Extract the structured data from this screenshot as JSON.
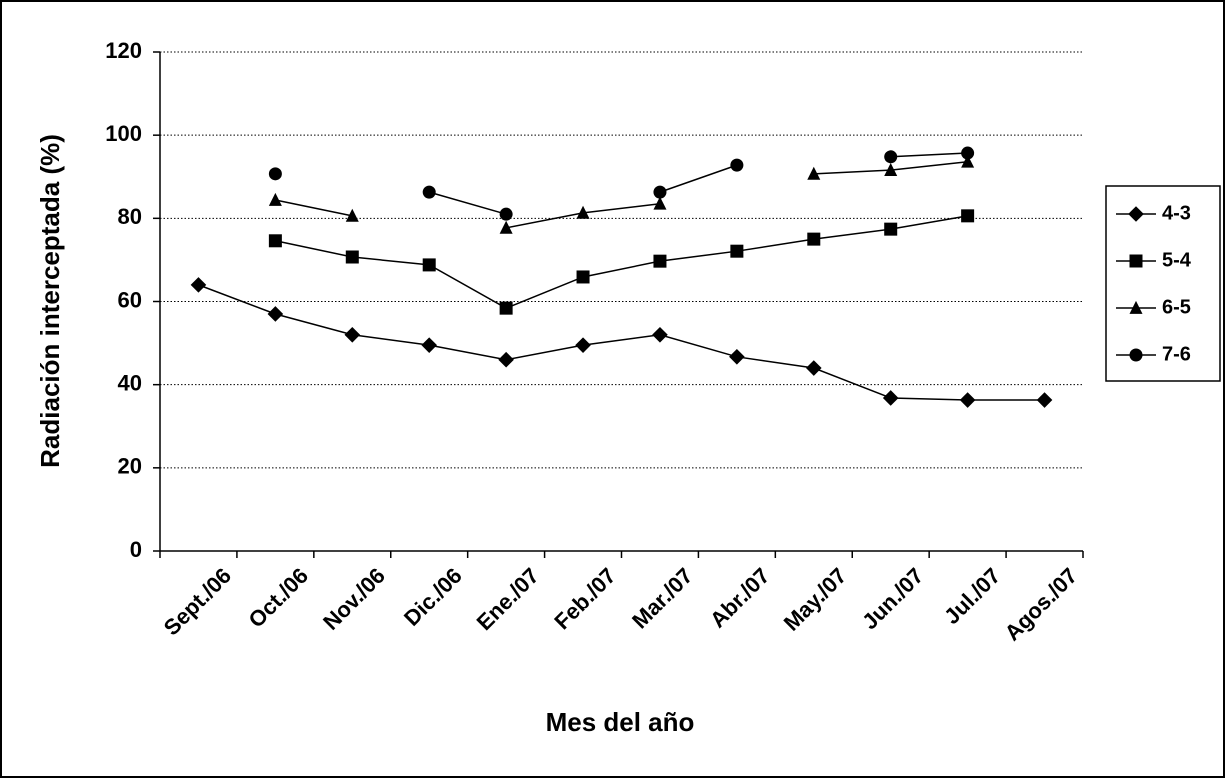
{
  "chart_data": {
    "type": "line",
    "x_label": "Mes del año",
    "y_label": "Radiación interceptada (%)",
    "categories": [
      "Sept./06",
      "Oct./06",
      "Nov./06",
      "Dic./06",
      "Ene./07",
      "Feb./07",
      "Mar./07",
      "Abr./07",
      "May./07",
      "Jun./07",
      "Jul./07",
      "Agos./07"
    ],
    "series": [
      {
        "name": "4-3",
        "color": "#000000",
        "marker": "diamond",
        "values": [
          64,
          57,
          52,
          49.5,
          46,
          49.5,
          52,
          46.7,
          44,
          36.8,
          36.3,
          36.3
        ]
      },
      {
        "name": "5-4",
        "color": "#000000",
        "marker": "square",
        "values": [
          null,
          74.6,
          70.7,
          68.8,
          58.4,
          65.9,
          69.7,
          72.1,
          75,
          77.4,
          80.6,
          null
        ]
      },
      {
        "name": "6-5",
        "color": "#000000",
        "marker": "triangle",
        "values": [
          null,
          84.4,
          80.6,
          null,
          77.7,
          81.3,
          83.5,
          null,
          90.7,
          91.6,
          93.6,
          null
        ]
      },
      {
        "name": "7-6",
        "color": "#000000",
        "marker": "circle",
        "values": [
          null,
          90.7,
          null,
          86.3,
          81,
          null,
          86.3,
          92.8,
          null,
          94.8,
          95.7,
          null
        ]
      }
    ],
    "ylim": [
      0,
      120
    ],
    "yticks": [
      0,
      20,
      40,
      60,
      80,
      100,
      120
    ],
    "grid": true,
    "legend": "right"
  }
}
